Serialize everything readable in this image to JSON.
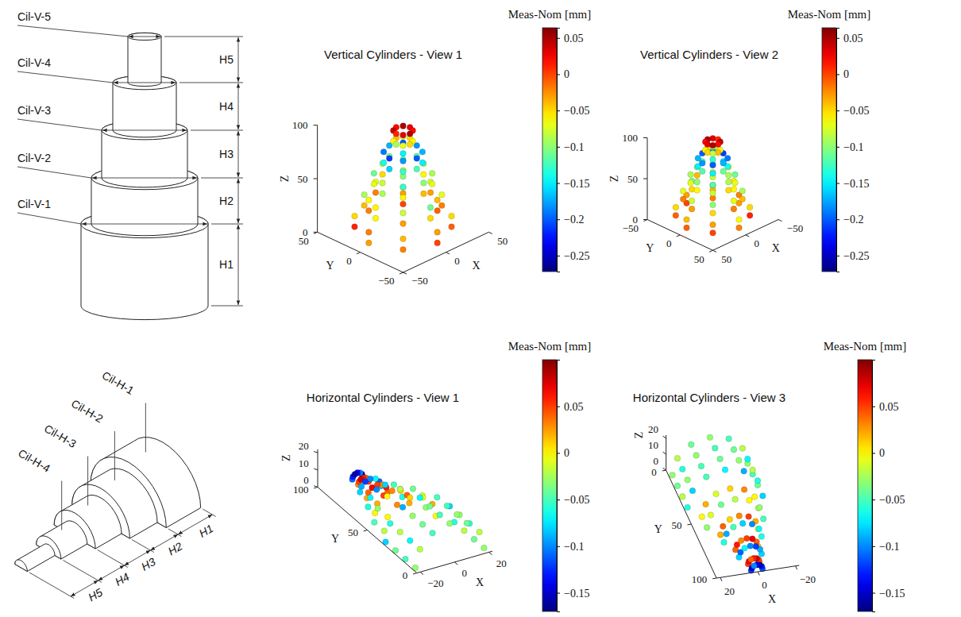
{
  "diagrams": [
    {
      "labels": [
        "Cil-V-5",
        "Cil-V-4",
        "Cil-V-3",
        "Cil-V-2",
        "Cil-V-1"
      ],
      "dimensions": [
        "H5",
        "H4",
        "H3",
        "H2",
        "H1"
      ]
    },
    {
      "labels": [
        "Cil-H-1",
        "Cil-H-2",
        "Cil-H-3",
        "Cil-H-4"
      ],
      "dimensions": [
        "H1",
        "H2",
        "H3",
        "H4",
        "H5"
      ]
    }
  ],
  "chart_data": [
    {
      "type": "scatter3d",
      "title": "Vertical Cylinders - View 1",
      "xlabel": "X",
      "ylabel": "Y",
      "zlabel": "Z",
      "xlim": [
        -50,
        50
      ],
      "xticks": [
        {
          "value": -50,
          "label": "−50"
        },
        0,
        50
      ],
      "ylim": [
        -50,
        50
      ],
      "yticks": [
        {
          "value": -50,
          "label": "−50"
        },
        0,
        50
      ],
      "zlim": [
        0,
        100
      ],
      "zticks": [
        0,
        50,
        100
      ],
      "series": [
        {
          "radius": 40,
          "z": [
            5,
            15
          ],
          "angles": [
            0,
            45,
            90,
            135,
            180,
            225,
            270,
            315
          ],
          "values": [
            [
              -0.01,
              0.0,
              -0.02,
              0.01,
              -0.03,
              -0.02,
              0.0,
              -0.01
            ],
            [
              -0.04,
              -0.03,
              -0.06,
              -0.05,
              -0.02,
              -0.04,
              -0.03,
              -0.05
            ]
          ]
        },
        {
          "radius": 32,
          "z": [
            25,
            35
          ],
          "angles": [
            0,
            45,
            90,
            135,
            180,
            225,
            270,
            315
          ],
          "values": [
            [
              -0.03,
              -0.05,
              -0.02,
              -0.04,
              -0.06,
              -0.03,
              -0.05,
              -0.02
            ],
            [
              -0.08,
              -0.1,
              -0.07,
              -0.09,
              -0.06,
              -0.08,
              -0.11,
              -0.07
            ]
          ]
        },
        {
          "radius": 24,
          "z": [
            45,
            55
          ],
          "angles": [
            0,
            45,
            90,
            135,
            180,
            225,
            270,
            315
          ],
          "values": [
            [
              -0.06,
              -0.08,
              -0.05,
              -0.07,
              -0.09,
              -0.06,
              -0.04,
              -0.07
            ],
            [
              -0.1,
              -0.12,
              -0.09,
              -0.11,
              -0.08,
              -0.13,
              -0.1,
              -0.09
            ]
          ]
        },
        {
          "radius": 16,
          "z": [
            65,
            75
          ],
          "angles": [
            0,
            45,
            90,
            135,
            180,
            225,
            270,
            315
          ],
          "values": [
            [
              -0.12,
              -0.15,
              -0.11,
              -0.14,
              -0.16,
              -0.13,
              -0.12,
              -0.15
            ],
            [
              -0.18,
              -0.2,
              -0.17,
              -0.19,
              -0.21,
              -0.18,
              -0.2,
              -0.17
            ]
          ]
        },
        {
          "radius": 8,
          "z": [
            85,
            95
          ],
          "angles": [
            0,
            45,
            90,
            135,
            180,
            225,
            270,
            315
          ],
          "values": [
            [
              -0.05,
              -0.08,
              -0.04,
              -0.06,
              -0.09,
              -0.07,
              -0.05,
              -0.06
            ],
            [
              0.03,
              0.05,
              0.02,
              0.04,
              0.01,
              0.03,
              0.05,
              0.02
            ]
          ]
        }
      ],
      "colorbar": {
        "label": "Meas-Nom [mm]",
        "range": [
          -0.272,
          0.064
        ],
        "ticks": [
          0.05,
          0,
          {
            "value": -0.05,
            "label": "−0.05"
          },
          {
            "value": -0.1,
            "label": "−0.1"
          },
          {
            "value": -0.15,
            "label": "−0.15"
          },
          {
            "value": -0.2,
            "label": "−0.2"
          },
          {
            "value": -0.25,
            "label": "−0.25"
          }
        ]
      }
    },
    {
      "type": "scatter3d",
      "title": "Vertical Cylinders - View 2",
      "xlabel": "X",
      "ylabel": "Y",
      "zlabel": "Z",
      "xlim": [
        -50,
        50
      ],
      "xticks": [
        {
          "value": -50,
          "label": "−50"
        },
        0,
        50
      ],
      "ylim": [
        -50,
        50
      ],
      "yticks": [
        {
          "value": -50,
          "label": "−50"
        },
        0,
        50
      ],
      "zlim": [
        0,
        100
      ],
      "zticks": [
        0,
        50,
        100
      ],
      "series": [
        {
          "radius": 40,
          "z": [
            5,
            15
          ],
          "angles": [
            0,
            45,
            90,
            135,
            180,
            225,
            270,
            315
          ],
          "values": [
            [
              -0.01,
              0.0,
              -0.02,
              0.01,
              -0.03,
              -0.02,
              0.0,
              -0.01
            ],
            [
              -0.04,
              -0.03,
              -0.06,
              -0.05,
              -0.02,
              -0.04,
              -0.03,
              -0.05
            ]
          ]
        },
        {
          "radius": 32,
          "z": [
            25,
            35
          ],
          "angles": [
            0,
            45,
            90,
            135,
            180,
            225,
            270,
            315
          ],
          "values": [
            [
              -0.03,
              -0.05,
              -0.02,
              -0.04,
              -0.06,
              -0.03,
              -0.05,
              -0.02
            ],
            [
              -0.08,
              -0.1,
              -0.07,
              -0.09,
              -0.06,
              -0.08,
              -0.11,
              -0.07
            ]
          ]
        },
        {
          "radius": 24,
          "z": [
            45,
            55
          ],
          "angles": [
            0,
            45,
            90,
            135,
            180,
            225,
            270,
            315
          ],
          "values": [
            [
              -0.06,
              -0.08,
              -0.05,
              -0.07,
              -0.09,
              -0.06,
              -0.04,
              -0.07
            ],
            [
              -0.1,
              -0.12,
              -0.09,
              -0.11,
              -0.08,
              -0.13,
              -0.1,
              -0.09
            ]
          ]
        },
        {
          "radius": 16,
          "z": [
            65,
            75
          ],
          "angles": [
            0,
            45,
            90,
            135,
            180,
            225,
            270,
            315
          ],
          "values": [
            [
              -0.12,
              -0.15,
              -0.11,
              -0.14,
              -0.16,
              -0.13,
              -0.12,
              -0.15
            ],
            [
              -0.18,
              -0.2,
              -0.17,
              -0.19,
              -0.21,
              -0.18,
              -0.2,
              -0.17
            ]
          ]
        },
        {
          "radius": 8,
          "z": [
            85,
            95
          ],
          "angles": [
            0,
            45,
            90,
            135,
            180,
            225,
            270,
            315
          ],
          "values": [
            [
              -0.05,
              -0.08,
              -0.04,
              -0.06,
              -0.09,
              -0.07,
              -0.05,
              -0.06
            ],
            [
              0.03,
              0.05,
              0.02,
              0.04,
              0.01,
              0.03,
              0.05,
              0.02
            ]
          ]
        }
      ],
      "colorbar": {
        "label": "Meas-Nom [mm]",
        "range": [
          -0.272,
          0.064
        ],
        "ticks": [
          0.05,
          0,
          {
            "value": -0.05,
            "label": "−0.05"
          },
          {
            "value": -0.1,
            "label": "−0.1"
          },
          {
            "value": -0.15,
            "label": "−0.15"
          },
          {
            "value": -0.2,
            "label": "−0.2"
          },
          {
            "value": -0.25,
            "label": "−0.25"
          }
        ]
      }
    },
    {
      "type": "scatter3d",
      "title": "Horizontal Cylinders - View 1",
      "xlabel": "X",
      "ylabel": "Y",
      "zlabel": "Z",
      "xlim": [
        -22,
        22
      ],
      "xticks": [
        {
          "value": -20,
          "label": "−20"
        },
        0,
        20
      ],
      "ylim": [
        0,
        100
      ],
      "yticks": [
        0,
        50,
        100
      ],
      "zlim": [
        0,
        22
      ],
      "zticks": [
        0,
        10,
        20
      ],
      "series": [
        {
          "radius": 20,
          "y": [
            5,
            15,
            25,
            35
          ],
          "angles": [
            0,
            30,
            60,
            90,
            120,
            150,
            180
          ],
          "values": [
            [
              -0.03,
              -0.02,
              -0.04,
              -0.03,
              -0.05,
              -0.02,
              -0.03
            ],
            [
              -0.04,
              -0.06,
              -0.03,
              -0.05,
              -0.04,
              -0.07,
              -0.05
            ],
            [
              -0.02,
              -0.03,
              -0.05,
              -0.04,
              -0.03,
              -0.02,
              -0.04
            ],
            [
              -0.06,
              -0.08,
              -0.05,
              -0.07,
              -0.09,
              -0.06,
              -0.08
            ]
          ]
        },
        {
          "radius": 15,
          "y": [
            45,
            55
          ],
          "angles": [
            0,
            30,
            60,
            90,
            120,
            150,
            180
          ],
          "values": [
            [
              0.0,
              0.02,
              -0.01,
              0.01,
              0.03,
              0.0,
              -0.02
            ],
            [
              -0.03,
              -0.01,
              -0.04,
              -0.02,
              0.0,
              -0.03,
              -0.05
            ]
          ]
        },
        {
          "radius": 10,
          "y": [
            63,
            70
          ],
          "angles": [
            0,
            30,
            60,
            90,
            120,
            150,
            180
          ],
          "values": [
            [
              0.02,
              0.04,
              0.01,
              0.03,
              0.05,
              0.02,
              0.0
            ],
            [
              -0.06,
              -0.09,
              -0.05,
              -0.08,
              -0.1,
              -0.07,
              -0.06
            ]
          ]
        },
        {
          "radius": 6,
          "y": [
            78,
            85
          ],
          "angles": [
            0,
            30,
            60,
            90,
            120,
            150,
            180
          ],
          "values": [
            [
              0.04,
              0.06,
              0.03,
              0.05,
              0.07,
              0.04,
              0.02
            ],
            [
              -0.08,
              -0.11,
              -0.07,
              -0.1,
              -0.12,
              -0.09,
              -0.08
            ]
          ]
        },
        {
          "radius": 3,
          "y": [
            92,
            98
          ],
          "angles": [
            0,
            30,
            60,
            90,
            120,
            150,
            180
          ],
          "values": [
            [
              0.05,
              0.07,
              0.04,
              0.06,
              0.08,
              0.05,
              0.03
            ],
            [
              -0.12,
              -0.15,
              -0.1,
              -0.14,
              -0.16,
              -0.13,
              -0.11
            ]
          ]
        }
      ],
      "colorbar": {
        "label": "Meas-Nom [mm]",
        "range": [
          -0.17,
          0.1
        ],
        "ticks": [
          0.05,
          0,
          {
            "value": -0.05,
            "label": "−0.05"
          },
          {
            "value": -0.1,
            "label": "−0.1"
          },
          {
            "value": -0.15,
            "label": "−0.15"
          }
        ]
      }
    },
    {
      "type": "scatter3d",
      "title": "Horizontal Cylinders - View 3",
      "xlabel": "X",
      "ylabel": "Y",
      "zlabel": "Z",
      "xlim": [
        -22,
        22
      ],
      "xticks": [
        {
          "value": -20,
          "label": "−20"
        },
        0,
        20
      ],
      "ylim": [
        0,
        100
      ],
      "yticks": [
        0,
        50,
        100
      ],
      "zlim": [
        0,
        22
      ],
      "zticks": [
        0,
        10,
        20
      ],
      "series": [
        {
          "radius": 20,
          "y": [
            5,
            15,
            25,
            35
          ],
          "angles": [
            0,
            30,
            60,
            90,
            120,
            150,
            180
          ],
          "values": [
            [
              -0.03,
              -0.02,
              -0.04,
              -0.03,
              -0.05,
              -0.02,
              -0.03
            ],
            [
              -0.04,
              -0.06,
              -0.03,
              -0.05,
              -0.04,
              -0.07,
              -0.05
            ],
            [
              -0.02,
              -0.03,
              -0.05,
              -0.04,
              -0.03,
              -0.02,
              -0.04
            ],
            [
              -0.06,
              -0.08,
              -0.05,
              -0.07,
              -0.09,
              -0.06,
              -0.08
            ]
          ]
        },
        {
          "radius": 15,
          "y": [
            45,
            55
          ],
          "angles": [
            0,
            30,
            60,
            90,
            120,
            150,
            180
          ],
          "values": [
            [
              0.0,
              0.02,
              -0.01,
              0.01,
              0.03,
              0.0,
              -0.02
            ],
            [
              -0.03,
              -0.01,
              -0.04,
              -0.02,
              0.0,
              -0.03,
              -0.05
            ]
          ]
        },
        {
          "radius": 10,
          "y": [
            63,
            70
          ],
          "angles": [
            0,
            30,
            60,
            90,
            120,
            150,
            180
          ],
          "values": [
            [
              0.02,
              0.04,
              0.01,
              0.03,
              0.05,
              0.02,
              0.0
            ],
            [
              -0.06,
              -0.09,
              -0.05,
              -0.08,
              -0.1,
              -0.07,
              -0.06
            ]
          ]
        },
        {
          "radius": 6,
          "y": [
            78,
            85
          ],
          "angles": [
            0,
            30,
            60,
            90,
            120,
            150,
            180
          ],
          "values": [
            [
              0.04,
              0.06,
              0.03,
              0.05,
              0.07,
              0.04,
              0.02
            ],
            [
              -0.08,
              -0.11,
              -0.07,
              -0.1,
              -0.12,
              -0.09,
              -0.08
            ]
          ]
        },
        {
          "radius": 3,
          "y": [
            92,
            98
          ],
          "angles": [
            0,
            30,
            60,
            90,
            120,
            150,
            180
          ],
          "values": [
            [
              0.05,
              0.07,
              0.04,
              0.06,
              0.08,
              0.05,
              0.03
            ],
            [
              -0.12,
              -0.15,
              -0.1,
              -0.14,
              -0.16,
              -0.13,
              -0.11
            ]
          ]
        }
      ],
      "colorbar": {
        "label": "Meas-Nom [mm]",
        "range": [
          -0.17,
          0.1
        ],
        "ticks": [
          0.05,
          0,
          {
            "value": -0.05,
            "label": "−0.05"
          },
          {
            "value": -0.1,
            "label": "−0.1"
          },
          {
            "value": -0.15,
            "label": "−0.15"
          }
        ]
      }
    }
  ]
}
